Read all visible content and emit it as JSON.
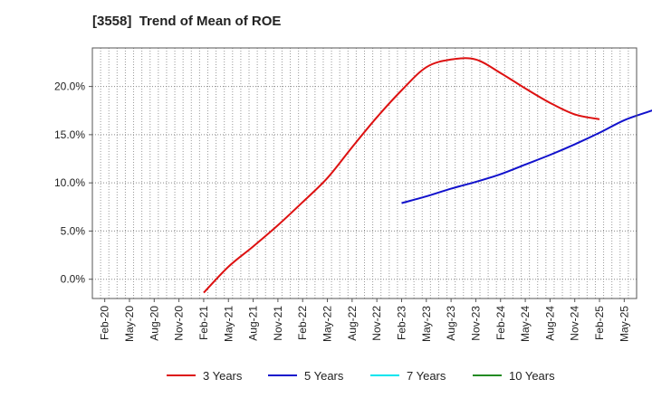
{
  "chart_data": {
    "type": "line",
    "title": "[3558]  Trend of Mean of ROE",
    "xlabel": "",
    "ylabel": "",
    "ylim": [
      -2,
      24
    ],
    "y_ticks": [
      0,
      5,
      10,
      15,
      20
    ],
    "y_tick_labels": [
      "0.0%",
      "5.0%",
      "10.0%",
      "15.0%",
      "20.0%"
    ],
    "x_tick_labels": [
      "Feb-20",
      "May-20",
      "Aug-20",
      "Nov-20",
      "Feb-21",
      "May-21",
      "Aug-21",
      "Nov-21",
      "Feb-22",
      "May-22",
      "Aug-22",
      "Nov-22",
      "Feb-23",
      "May-23",
      "Aug-23",
      "Nov-23",
      "Feb-24",
      "May-24",
      "Aug-24",
      "Nov-24",
      "Feb-25",
      "May-25"
    ],
    "grid": true,
    "legend_position": "bottom",
    "series": [
      {
        "name": "3 Years",
        "color": "#dd1111",
        "x_start_index": 4,
        "values": [
          -1.4,
          1.3,
          3.4,
          5.6,
          8.0,
          10.5,
          13.7,
          16.8,
          19.6,
          22.0,
          22.8,
          22.8,
          21.4,
          19.8,
          18.3,
          17.1,
          16.6
        ]
      },
      {
        "name": "5 Years",
        "color": "#1111cc",
        "x_start_index": 12,
        "values": [
          7.9,
          8.6,
          9.4,
          10.1,
          10.9,
          11.9,
          12.9,
          14.0,
          15.2,
          16.5,
          17.4,
          18.2
        ]
      },
      {
        "name": "7 Years",
        "color": "#00e5ee",
        "x_start_index": 0,
        "values": []
      },
      {
        "name": "10 Years",
        "color": "#228b22",
        "x_start_index": 0,
        "values": []
      }
    ]
  }
}
